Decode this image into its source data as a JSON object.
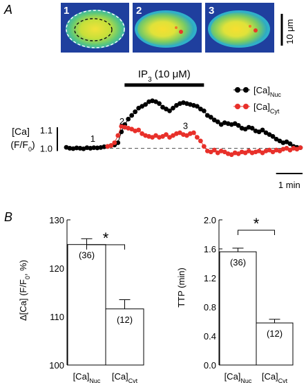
{
  "panels": {
    "a": {
      "letter": "A"
    },
    "b": {
      "letter": "B"
    }
  },
  "images": {
    "labels": [
      "1",
      "2",
      "3"
    ],
    "scale_bar": "10 μm"
  },
  "chart_data": [
    {
      "type": "line",
      "title": "",
      "stimulus": {
        "label": "IP",
        "sub": "3",
        "conc": " (10 μM)",
        "start_min": 2.2,
        "end_min": 5.2
      },
      "ylabel": {
        "main": "[Ca]",
        "paren_open": "(F/F",
        "sub": "0",
        "paren_close": ")"
      },
      "yticks": [
        {
          "value": 1.0,
          "label": "1.0"
        },
        {
          "value": 1.1,
          "label": "1.1"
        }
      ],
      "ylim": [
        0.96,
        1.32
      ],
      "xlim": [
        0,
        9
      ],
      "baseline": 1.0,
      "time_scale_bar": "1 min",
      "point_markers": [
        {
          "label": "1",
          "x": 1.0,
          "y": 1.035
        },
        {
          "label": "2",
          "x": 2.1,
          "y": 1.13
        },
        {
          "label": "3",
          "x": 4.5,
          "y": 1.105
        }
      ],
      "legend": {
        "placement": "top-right"
      },
      "series": [
        {
          "name": "[Ca]",
          "name_sub": "Nuc",
          "color": "#000000",
          "x": [
            0.0,
            0.13,
            0.26,
            0.39,
            0.52,
            0.65,
            0.78,
            0.91,
            1.04,
            1.17,
            1.3,
            1.43,
            1.56,
            1.69,
            1.82,
            1.95,
            2.08,
            2.21,
            2.34,
            2.47,
            2.6,
            2.73,
            2.86,
            2.99,
            3.12,
            3.25,
            3.38,
            3.51,
            3.64,
            3.77,
            3.9,
            4.03,
            4.16,
            4.29,
            4.42,
            4.55,
            4.68,
            4.81,
            4.94,
            5.07,
            5.2,
            5.33,
            5.46,
            5.59,
            5.72,
            5.85,
            5.98,
            6.11,
            6.24,
            6.37,
            6.5,
            6.63,
            6.76,
            6.89,
            7.02,
            7.15,
            7.28,
            7.41,
            7.54,
            7.67,
            7.8,
            7.93,
            8.06,
            8.19,
            8.32,
            8.45,
            8.58,
            8.71,
            8.84
          ],
          "y": [
            1.005,
            1.0,
            0.998,
            1.002,
            1.0,
            0.997,
            1.003,
            1.0,
            1.003,
            1.002,
            1.004,
            1.008,
            1.01,
            1.015,
            1.018,
            1.03,
            1.09,
            1.13,
            1.16,
            1.18,
            1.2,
            1.22,
            1.23,
            1.24,
            1.255,
            1.26,
            1.255,
            1.245,
            1.225,
            1.215,
            1.205,
            1.22,
            1.235,
            1.245,
            1.25,
            1.245,
            1.24,
            1.235,
            1.23,
            1.215,
            1.205,
            1.18,
            1.17,
            1.155,
            1.145,
            1.13,
            1.14,
            1.135,
            1.13,
            1.135,
            1.125,
            1.11,
            1.105,
            1.115,
            1.11,
            1.095,
            1.09,
            1.1,
            1.085,
            1.075,
            1.065,
            1.05,
            1.04,
            1.03,
            1.035,
            1.025,
            1.01,
            1.005,
            1.003
          ]
        },
        {
          "name": "[Ca]",
          "name_sub": "Cyt",
          "color": "#e8302a",
          "x": [
            1.56,
            1.69,
            1.82,
            1.95,
            2.08,
            2.21,
            2.34,
            2.47,
            2.6,
            2.73,
            2.86,
            2.99,
            3.12,
            3.25,
            3.38,
            3.51,
            3.64,
            3.77,
            3.9,
            4.03,
            4.16,
            4.29,
            4.42,
            4.55,
            4.68,
            4.81,
            4.94,
            5.07,
            5.2,
            5.33,
            5.46,
            5.59,
            5.72,
            5.85,
            5.98,
            6.11,
            6.24,
            6.37,
            6.5,
            6.63,
            6.76,
            6.89,
            7.02,
            7.15,
            7.28,
            7.41,
            7.54,
            7.67,
            7.8,
            7.93,
            8.06,
            8.19,
            8.32,
            8.45,
            8.58,
            8.71,
            8.84
          ],
          "y": [
            1.01,
            1.015,
            1.03,
            1.07,
            1.12,
            1.115,
            1.11,
            1.105,
            1.095,
            1.1,
            1.08,
            1.07,
            1.065,
            1.06,
            1.07,
            1.06,
            1.065,
            1.075,
            1.06,
            1.07,
            1.08,
            1.085,
            1.075,
            1.07,
            1.08,
            1.085,
            1.06,
            1.04,
            1.01,
            0.985,
            0.98,
            0.99,
            0.975,
            0.985,
            0.98,
            0.97,
            0.965,
            0.975,
            0.97,
            0.98,
            0.975,
            0.985,
            0.975,
            0.98,
            0.985,
            0.975,
            0.985,
            0.99,
            0.98,
            0.99,
            0.985,
            0.995,
            1.0,
            0.99,
            1.0,
            0.995,
            1.003
          ]
        }
      ]
    },
    {
      "type": "bar",
      "title": "",
      "ylabel": {
        "main": "Δ[Ca] (F/F",
        "sub": "0",
        "tail": ", %)"
      },
      "ylim": [
        100,
        130
      ],
      "yticks": [
        100,
        110,
        120,
        130
      ],
      "categories": [
        {
          "main": "[Ca]",
          "sub": "Nuc"
        },
        {
          "main": "[Ca]",
          "sub": "Cyt"
        }
      ],
      "values": [
        124.9,
        111.6
      ],
      "errors": [
        1.2,
        1.9
      ],
      "n_labels": [
        "(36)",
        "(12)"
      ],
      "significance": "*"
    },
    {
      "type": "bar",
      "title": "",
      "ylabel": {
        "main": "TTP (min)"
      },
      "ylim": [
        0,
        2.0
      ],
      "yticks": [
        0.0,
        0.4,
        0.8,
        1.2,
        1.6,
        2.0
      ],
      "ytick_labels": [
        "0.0",
        "0.4",
        "0.8",
        "1.2",
        "1.6",
        "2.0"
      ],
      "categories": [
        {
          "main": "[Ca]",
          "sub": "Nuc"
        },
        {
          "main": "[Ca]",
          "sub": "Cyt"
        }
      ],
      "values": [
        1.56,
        0.58
      ],
      "errors": [
        0.05,
        0.05
      ],
      "n_labels": [
        "(36)",
        "(12)"
      ],
      "significance": "*"
    }
  ]
}
